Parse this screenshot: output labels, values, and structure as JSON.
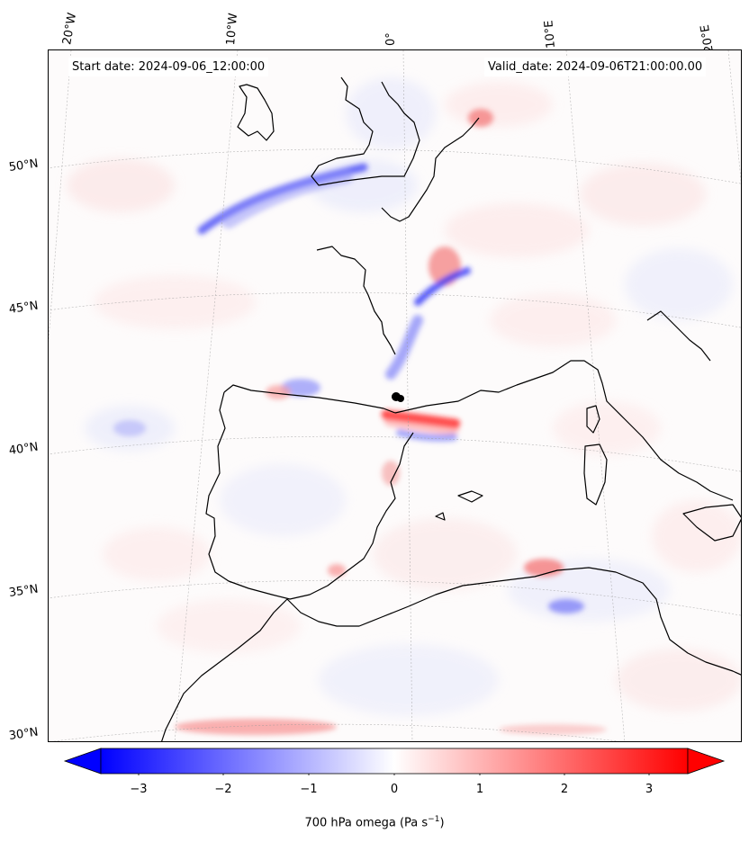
{
  "map": {
    "start_date": "Start date: 2024-09-06_12:00:00",
    "valid_date": "Valid_date: 2024-09-06T21:00:00.00",
    "longitude_labels": [
      "20°W",
      "10°W",
      "0°",
      "10°E",
      "20°E"
    ],
    "latitude_labels": [
      "50°N",
      "45°N",
      "40°N",
      "35°N",
      "30°N"
    ],
    "field": "700 hPa omega",
    "colormap": "bwr",
    "colors": {
      "negative": "#0000ff",
      "zero": "#ffffff",
      "positive": "#ff0000",
      "coastline": "#000000"
    }
  },
  "colorbar": {
    "ticks": [
      "−3",
      "−2",
      "−1",
      "0",
      "1",
      "2",
      "3"
    ],
    "label_main": "700 hPa omega (Pa s",
    "label_exp": "−1",
    "label_end": ")",
    "range": [
      -3.7,
      3.7
    ],
    "extend": "both"
  }
}
